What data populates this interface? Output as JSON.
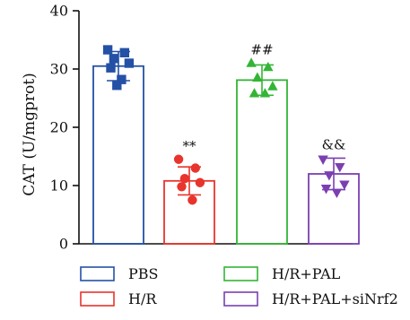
{
  "chart_data": {
    "type": "bar",
    "ylabel": "CAT (U/mgprot)",
    "xlabel": "",
    "title": "",
    "ylim": [
      0,
      40
    ],
    "yticks": [
      0,
      10,
      20,
      30,
      40
    ],
    "error_bars": true,
    "legend_position": "bottom",
    "categories": [
      "PBS",
      "H/R",
      "H/R+PAL",
      "H/R+PAL+siNrf2"
    ],
    "series": [
      {
        "name": "PBS",
        "color": "#2451a6",
        "marker": "square",
        "mean": 30.5,
        "error": 2.5,
        "points": [
          33.3,
          32.8,
          31.8,
          31.0,
          30.2,
          28.2,
          27.2
        ],
        "annotation": ""
      },
      {
        "name": "H/R",
        "color": "#e8342c",
        "marker": "circle",
        "mean": 10.8,
        "error": 2.4,
        "points": [
          14.5,
          13.0,
          11.2,
          10.5,
          9.8,
          7.5
        ],
        "annotation": "**"
      },
      {
        "name": "H/R+PAL",
        "color": "#33b535",
        "marker": "triangle-up",
        "mean": 28.1,
        "error": 2.6,
        "points": [
          31.0,
          30.3,
          28.5,
          27.0,
          25.8,
          25.8
        ],
        "annotation": "##"
      },
      {
        "name": "H/R+PAL+siNrf2",
        "color": "#7b3fb2",
        "marker": "triangle-down",
        "mean": 12.0,
        "error": 2.7,
        "points": [
          14.5,
          13.2,
          11.8,
          10.2,
          9.5,
          8.8
        ],
        "annotation": "&&"
      }
    ]
  }
}
